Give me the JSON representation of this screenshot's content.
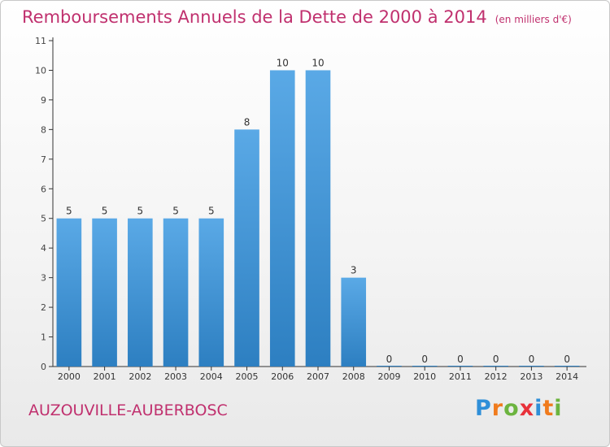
{
  "title": "Remboursements Annuels de la Dette de 2000 à 2014",
  "title_unit": "(en milliers d'€)",
  "town": "AUZOUVILLE-AUBERBOSC",
  "logo": {
    "letters": [
      "P",
      "r",
      "o",
      "x",
      "i",
      "t",
      "i"
    ],
    "colors": [
      "#2f8fd8",
      "#f07b1d",
      "#6cb43f",
      "#e8313a",
      "#2f8fd8",
      "#f07b1d",
      "#6cb43f"
    ]
  },
  "colors": {
    "bar_top": "#5aa9e6",
    "bar_bottom": "#2d7fc1",
    "accent": "#c0306e"
  },
  "chart_data": {
    "type": "bar",
    "categories": [
      "2000",
      "2001",
      "2002",
      "2003",
      "2004",
      "2005",
      "2006",
      "2007",
      "2008",
      "2009",
      "2010",
      "2011",
      "2012",
      "2013",
      "2014"
    ],
    "values": [
      5,
      5,
      5,
      5,
      5,
      8,
      10,
      10,
      3,
      0,
      0,
      0,
      0,
      0,
      0
    ],
    "value_labels": [
      "5",
      "5",
      "5",
      "5",
      "5",
      "8",
      "10",
      "10",
      "3",
      "0",
      "0",
      "0",
      "0",
      "0",
      "0"
    ],
    "y_ticks": [
      "0",
      "1",
      "2",
      "3",
      "4",
      "5",
      "6",
      "7",
      "8",
      "9",
      "10",
      "11"
    ],
    "ylim": [
      0,
      11
    ],
    "grid": false,
    "legend": "none"
  }
}
